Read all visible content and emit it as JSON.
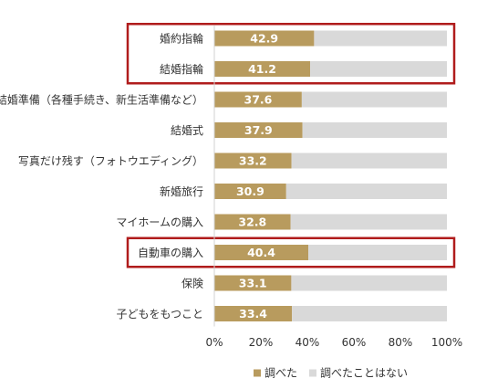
{
  "chart_data": {
    "type": "bar",
    "orientation": "horizontal",
    "stacked": true,
    "percent_stacked": true,
    "categories": [
      "婚約指輪",
      "結婚指輪",
      "結婚準備（各種手続き、新生活準備など）",
      "結婚式",
      "写真だけ残す（フォトウエディング）",
      "新婚旅行",
      "マイホームの購入",
      "自動車の購入",
      "保険",
      "子どもをもつこと"
    ],
    "series": [
      {
        "name": "調べた",
        "color": "#b89b5e",
        "values": [
          42.9,
          41.2,
          37.6,
          37.9,
          33.2,
          30.9,
          32.8,
          40.4,
          33.1,
          33.4
        ],
        "labels": [
          "42.9",
          "41.2",
          "37.6",
          "37.9",
          "33.2",
          "30.9",
          "32.8",
          "40.4",
          "33.1",
          "33.4"
        ]
      },
      {
        "name": "調べたことはない",
        "color": "#d9d9d9",
        "values": [
          57.1,
          58.8,
          62.4,
          62.1,
          66.8,
          69.1,
          67.2,
          59.6,
          66.9,
          66.6
        ]
      }
    ],
    "xlim": [
      0,
      100
    ],
    "xticks": [
      "0%",
      "20%",
      "40%",
      "60%",
      "80%",
      "100%"
    ],
    "grid": false,
    "legend_position": "bottom",
    "highlighted_categories": [
      "婚約指輪",
      "結婚指輪",
      "自動車の購入"
    ],
    "highlight_color": "#b01c1c"
  }
}
